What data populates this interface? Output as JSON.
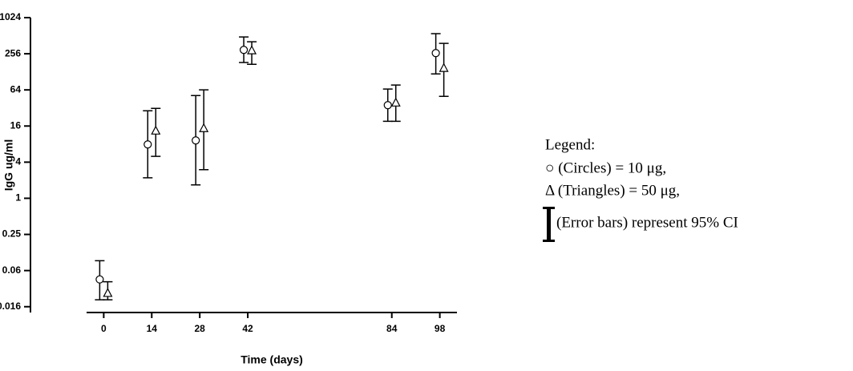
{
  "chart_data": {
    "type": "scatter",
    "x_label": "Time (days)",
    "y_label": "IgG ug/ml",
    "log_scale_y": true,
    "log_base_y": 2,
    "xlim": [
      -5,
      103
    ],
    "xticks": [
      0,
      14,
      28,
      42,
      84,
      98
    ],
    "ylim": [
      0.0125,
      1024
    ],
    "yticks": [
      {
        "value": 0.015625,
        "label": "0.016"
      },
      {
        "value": 0.0625,
        "label": "0.06"
      },
      0.25,
      1,
      4,
      16,
      64,
      256,
      1024
    ],
    "series": [
      {
        "marker": "circle",
        "color": "#000000",
        "x": [
          0,
          14,
          28,
          42,
          84,
          98
        ],
        "values": [
          0.0445,
          7.9,
          9.2,
          297,
          35.6,
          263
        ],
        "lower": [
          0.0204,
          2.2,
          1.67,
          183,
          19.2,
          118
        ],
        "upper": [
          0.0912,
          28.7,
          51.6,
          488,
          66,
          553
        ]
      },
      {
        "marker": "triangle",
        "color": "#000000",
        "x": [
          0,
          14,
          28,
          42,
          84,
          98
        ],
        "values": [
          0.0262,
          13.3,
          14.6,
          289,
          39,
          147
        ],
        "lower": [
          0.0204,
          5.0,
          3.0,
          171,
          19.2,
          50
        ],
        "upper": [
          0.0406,
          31.5,
          64,
          406,
          77,
          382
        ]
      }
    ],
    "legend_lines": [
      "Legend:",
      "○ (Circles) = 10 μg,",
      "Δ (Triangles) = 50 μg,",
      "(Error bars) represent 95% CI"
    ]
  }
}
